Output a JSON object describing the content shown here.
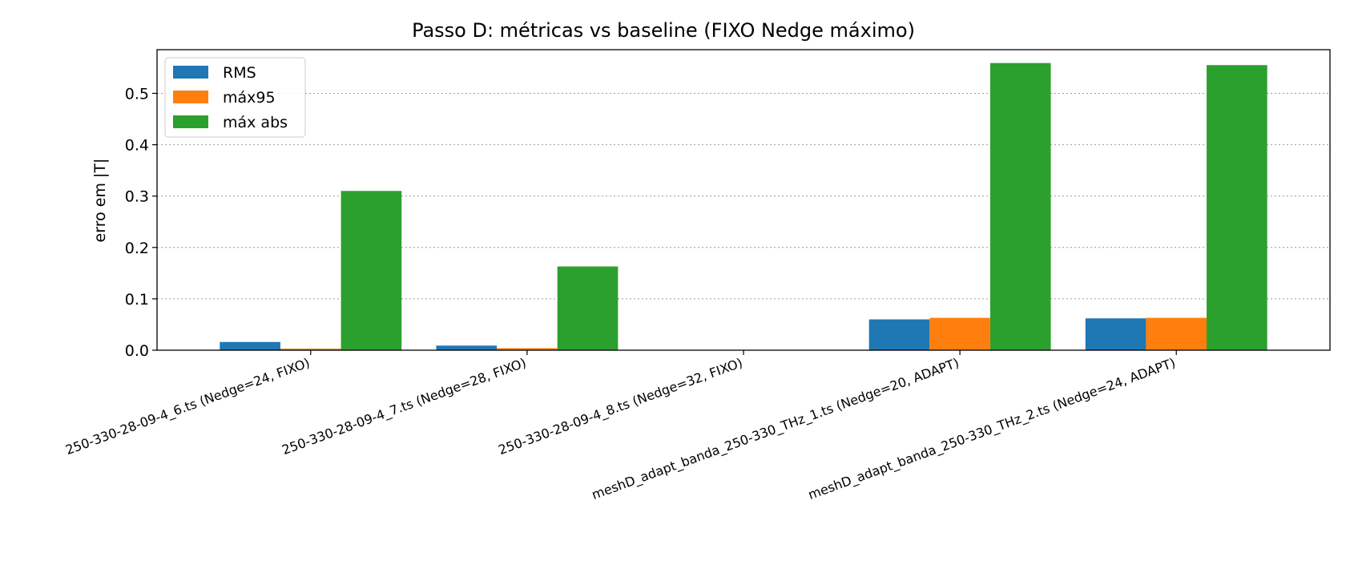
{
  "chart_data": {
    "type": "bar",
    "title": "Passo D: métricas vs baseline (FIXO Nedge máximo)",
    "xlabel": "",
    "ylabel": "erro em |T|",
    "ylim": [
      0,
      0.585
    ],
    "yticks": [
      0.0,
      0.1,
      0.2,
      0.3,
      0.4,
      0.5
    ],
    "ytick_labels": [
      "0.0",
      "0.1",
      "0.2",
      "0.3",
      "0.4",
      "0.5"
    ],
    "grid": "y-dotted",
    "legend_position": "top-left",
    "categories": [
      "250-330-28-09-4_6.ts (Nedge=24, FIXO)",
      "250-330-28-09-4_7.ts (Nedge=28, FIXO)",
      "250-330-28-09-4_8.ts (Nedge=32, FIXO)",
      "meshD_adapt_banda_250-330_THz_1.ts (Nedge=20, ADAPT)",
      "meshD_adapt_banda_250-330_THz_2.ts (Nedge=24, ADAPT)"
    ],
    "series": [
      {
        "name": "RMS",
        "color": "#1f77b4",
        "values": [
          0.016,
          0.009,
          0.0,
          0.06,
          0.062
        ]
      },
      {
        "name": "máx95",
        "color": "#ff7f0e",
        "values": [
          0.003,
          0.004,
          0.0,
          0.063,
          0.063
        ]
      },
      {
        "name": "máx abs",
        "color": "#2ca02c",
        "values": [
          0.31,
          0.163,
          0.0,
          0.559,
          0.555
        ]
      }
    ]
  }
}
